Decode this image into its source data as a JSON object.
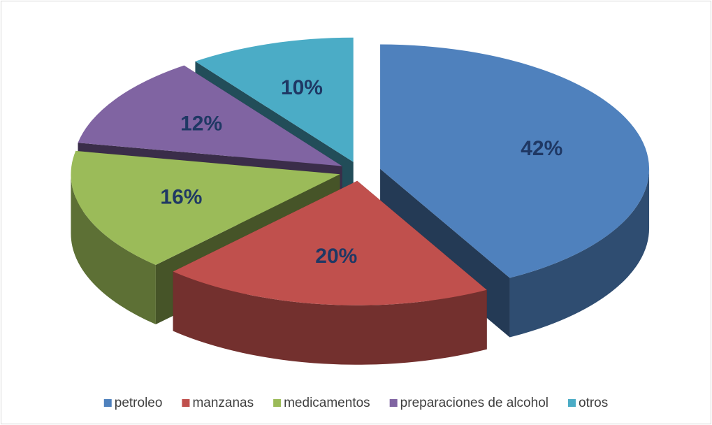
{
  "chart_data": {
    "type": "pie",
    "categories": [
      "petroleo",
      "manzanas",
      "medicamentos",
      "preparaciones de alcohol",
      "otros"
    ],
    "values": [
      42,
      20,
      16,
      12,
      10
    ],
    "value_labels": [
      "42%",
      "20%",
      "16%",
      "12%",
      "10%"
    ],
    "colors": [
      "#4f81bd",
      "#c0504d",
      "#9bbb59",
      "#8064a2",
      "#4bacc6"
    ],
    "legend": "bottom"
  }
}
